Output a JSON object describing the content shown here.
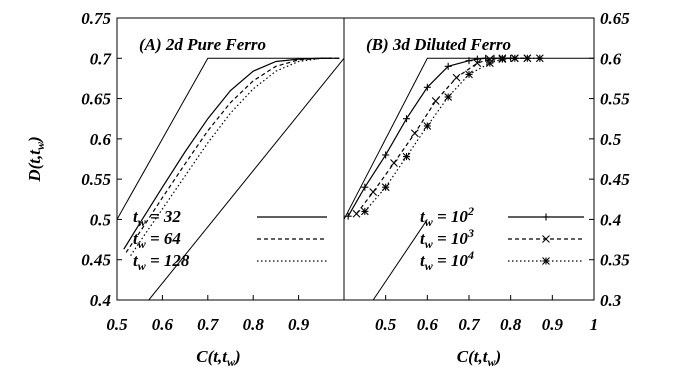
{
  "chart_data": [
    {
      "panel": "A",
      "type": "line",
      "title": "(A)  2d Pure Ferro",
      "xlabel": "C(t,t_w)",
      "ylabel": "D(t,t_w)",
      "xlim": [
        0.5,
        1.0
      ],
      "ylim": [
        0.4,
        0.75
      ],
      "xticks": [
        "0.5",
        "0.6",
        "0.7",
        "0.8",
        "0.9"
      ],
      "yticks": [
        "0.4",
        "0.45",
        "0.5",
        "0.55",
        "0.6",
        "0.65",
        "0.7",
        "0.75"
      ],
      "legend_position": "bottom-right",
      "series": [
        {
          "name": "t_w = 32",
          "legend_base": "t",
          "legend_sub": "w",
          "legend_rest": " = 32",
          "style": "solid",
          "x": [
            0.515,
            0.55,
            0.6,
            0.65,
            0.7,
            0.75,
            0.8,
            0.85,
            0.9,
            0.95,
            0.975
          ],
          "y": [
            0.463,
            0.495,
            0.54,
            0.584,
            0.625,
            0.66,
            0.684,
            0.696,
            0.699,
            0.7,
            0.7
          ]
        },
        {
          "name": "t_w = 64",
          "legend_base": "t",
          "legend_sub": "w",
          "legend_rest": " = 64",
          "style": "dashed",
          "x": [
            0.52,
            0.55,
            0.6,
            0.65,
            0.7,
            0.75,
            0.8,
            0.85,
            0.9,
            0.95,
            0.99
          ],
          "y": [
            0.459,
            0.484,
            0.527,
            0.569,
            0.61,
            0.645,
            0.672,
            0.69,
            0.698,
            0.7,
            0.7
          ]
        },
        {
          "name": "t_w = 128",
          "legend_base": "t",
          "legend_sub": "w",
          "legend_rest": " = 128",
          "style": "dotted",
          "x": [
            0.53,
            0.55,
            0.6,
            0.65,
            0.7,
            0.75,
            0.8,
            0.85,
            0.9,
            0.95,
            0.99
          ],
          "y": [
            0.455,
            0.472,
            0.513,
            0.554,
            0.595,
            0.632,
            0.662,
            0.684,
            0.696,
            0.7,
            0.7
          ]
        },
        {
          "name": "",
          "style": "bound",
          "x": [
            0.5,
            0.7,
            0.99
          ],
          "y": [
            0.5,
            0.7,
            0.7
          ]
        },
        {
          "name": "",
          "style": "bound",
          "x": [
            0.57,
            1.0
          ],
          "y": [
            0.4,
            0.7
          ]
        }
      ]
    },
    {
      "panel": "B",
      "type": "line",
      "title": "(B)  3d Diluted Ferro",
      "xlabel": "C(t,t_w)",
      "ylabel": "",
      "xlim": [
        0.4,
        1.0
      ],
      "ylim": [
        0.3,
        0.65
      ],
      "xticks": [
        "0.5",
        "0.6",
        "0.7",
        "0.8",
        "0.9",
        "1"
      ],
      "yticks": [
        "0.3",
        "0.35",
        "0.4",
        "0.45",
        "0.5",
        "0.55",
        "0.6",
        "0.65"
      ],
      "legend_position": "bottom-right",
      "series": [
        {
          "name": "t_w = 10^2",
          "legend_base": "t",
          "legend_sub": "w",
          "legend_rest": " = 10",
          "legend_sup": "2",
          "style": "solid",
          "marker": "plus",
          "x": [
            0.41,
            0.45,
            0.5,
            0.55,
            0.6,
            0.65,
            0.7,
            0.72,
            0.74,
            0.76,
            0.78,
            0.8
          ],
          "y": [
            0.404,
            0.44,
            0.48,
            0.525,
            0.564,
            0.59,
            0.597,
            0.599,
            0.6,
            0.6,
            0.6,
            0.6
          ]
        },
        {
          "name": "t_w = 10^3",
          "legend_base": "t",
          "legend_sub": "w",
          "legend_rest": " = 10",
          "legend_sup": "3",
          "style": "dashed",
          "marker": "cross",
          "x": [
            0.43,
            0.47,
            0.52,
            0.57,
            0.62,
            0.67,
            0.72,
            0.75,
            0.78,
            0.81,
            0.84
          ],
          "y": [
            0.407,
            0.434,
            0.47,
            0.507,
            0.547,
            0.576,
            0.594,
            0.599,
            0.6,
            0.6,
            0.6
          ]
        },
        {
          "name": "t_w = 10^4",
          "legend_base": "t",
          "legend_sub": "w",
          "legend_rest": " = 10",
          "legend_sup": "4",
          "style": "dotted",
          "marker": "star",
          "x": [
            0.45,
            0.5,
            0.55,
            0.6,
            0.65,
            0.7,
            0.75,
            0.78,
            0.81,
            0.84,
            0.87
          ],
          "y": [
            0.41,
            0.44,
            0.478,
            0.516,
            0.552,
            0.58,
            0.594,
            0.599,
            0.6,
            0.6,
            0.6
          ]
        },
        {
          "name": "",
          "style": "bound",
          "x": [
            0.4,
            0.6,
            1.0
          ],
          "y": [
            0.4,
            0.6,
            0.6
          ]
        },
        {
          "name": "",
          "style": "bound",
          "x": [
            0.47,
            0.6
          ],
          "y": [
            0.3,
            0.4
          ]
        }
      ]
    }
  ]
}
